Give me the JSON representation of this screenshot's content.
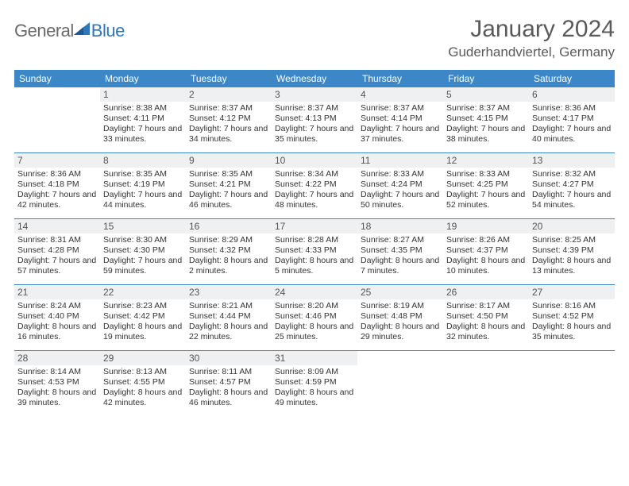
{
  "logo": {
    "general": "General",
    "blue": "Blue"
  },
  "title": "January 2024",
  "location": "Guderhandviertel, Germany",
  "colors": {
    "header_bg": "#3b87c8",
    "daynum_bg": "#eef0f2",
    "border": "#3b87c8",
    "text": "#333333",
    "muted": "#5a5a5a",
    "logo_blue": "#2d78b8",
    "logo_gray": "#6a6a6a"
  },
  "dayNames": [
    "Sunday",
    "Monday",
    "Tuesday",
    "Wednesday",
    "Thursday",
    "Friday",
    "Saturday"
  ],
  "weeks": [
    [
      {
        "n": "",
        "sr": "",
        "ss": "",
        "dl": ""
      },
      {
        "n": "1",
        "sr": "Sunrise: 8:38 AM",
        "ss": "Sunset: 4:11 PM",
        "dl": "Daylight: 7 hours and 33 minutes."
      },
      {
        "n": "2",
        "sr": "Sunrise: 8:37 AM",
        "ss": "Sunset: 4:12 PM",
        "dl": "Daylight: 7 hours and 34 minutes."
      },
      {
        "n": "3",
        "sr": "Sunrise: 8:37 AM",
        "ss": "Sunset: 4:13 PM",
        "dl": "Daylight: 7 hours and 35 minutes."
      },
      {
        "n": "4",
        "sr": "Sunrise: 8:37 AM",
        "ss": "Sunset: 4:14 PM",
        "dl": "Daylight: 7 hours and 37 minutes."
      },
      {
        "n": "5",
        "sr": "Sunrise: 8:37 AM",
        "ss": "Sunset: 4:15 PM",
        "dl": "Daylight: 7 hours and 38 minutes."
      },
      {
        "n": "6",
        "sr": "Sunrise: 8:36 AM",
        "ss": "Sunset: 4:17 PM",
        "dl": "Daylight: 7 hours and 40 minutes."
      }
    ],
    [
      {
        "n": "7",
        "sr": "Sunrise: 8:36 AM",
        "ss": "Sunset: 4:18 PM",
        "dl": "Daylight: 7 hours and 42 minutes."
      },
      {
        "n": "8",
        "sr": "Sunrise: 8:35 AM",
        "ss": "Sunset: 4:19 PM",
        "dl": "Daylight: 7 hours and 44 minutes."
      },
      {
        "n": "9",
        "sr": "Sunrise: 8:35 AM",
        "ss": "Sunset: 4:21 PM",
        "dl": "Daylight: 7 hours and 46 minutes."
      },
      {
        "n": "10",
        "sr": "Sunrise: 8:34 AM",
        "ss": "Sunset: 4:22 PM",
        "dl": "Daylight: 7 hours and 48 minutes."
      },
      {
        "n": "11",
        "sr": "Sunrise: 8:33 AM",
        "ss": "Sunset: 4:24 PM",
        "dl": "Daylight: 7 hours and 50 minutes."
      },
      {
        "n": "12",
        "sr": "Sunrise: 8:33 AM",
        "ss": "Sunset: 4:25 PM",
        "dl": "Daylight: 7 hours and 52 minutes."
      },
      {
        "n": "13",
        "sr": "Sunrise: 8:32 AM",
        "ss": "Sunset: 4:27 PM",
        "dl": "Daylight: 7 hours and 54 minutes."
      }
    ],
    [
      {
        "n": "14",
        "sr": "Sunrise: 8:31 AM",
        "ss": "Sunset: 4:28 PM",
        "dl": "Daylight: 7 hours and 57 minutes."
      },
      {
        "n": "15",
        "sr": "Sunrise: 8:30 AM",
        "ss": "Sunset: 4:30 PM",
        "dl": "Daylight: 7 hours and 59 minutes."
      },
      {
        "n": "16",
        "sr": "Sunrise: 8:29 AM",
        "ss": "Sunset: 4:32 PM",
        "dl": "Daylight: 8 hours and 2 minutes."
      },
      {
        "n": "17",
        "sr": "Sunrise: 8:28 AM",
        "ss": "Sunset: 4:33 PM",
        "dl": "Daylight: 8 hours and 5 minutes."
      },
      {
        "n": "18",
        "sr": "Sunrise: 8:27 AM",
        "ss": "Sunset: 4:35 PM",
        "dl": "Daylight: 8 hours and 7 minutes."
      },
      {
        "n": "19",
        "sr": "Sunrise: 8:26 AM",
        "ss": "Sunset: 4:37 PM",
        "dl": "Daylight: 8 hours and 10 minutes."
      },
      {
        "n": "20",
        "sr": "Sunrise: 8:25 AM",
        "ss": "Sunset: 4:39 PM",
        "dl": "Daylight: 8 hours and 13 minutes."
      }
    ],
    [
      {
        "n": "21",
        "sr": "Sunrise: 8:24 AM",
        "ss": "Sunset: 4:40 PM",
        "dl": "Daylight: 8 hours and 16 minutes."
      },
      {
        "n": "22",
        "sr": "Sunrise: 8:23 AM",
        "ss": "Sunset: 4:42 PM",
        "dl": "Daylight: 8 hours and 19 minutes."
      },
      {
        "n": "23",
        "sr": "Sunrise: 8:21 AM",
        "ss": "Sunset: 4:44 PM",
        "dl": "Daylight: 8 hours and 22 minutes."
      },
      {
        "n": "24",
        "sr": "Sunrise: 8:20 AM",
        "ss": "Sunset: 4:46 PM",
        "dl": "Daylight: 8 hours and 25 minutes."
      },
      {
        "n": "25",
        "sr": "Sunrise: 8:19 AM",
        "ss": "Sunset: 4:48 PM",
        "dl": "Daylight: 8 hours and 29 minutes."
      },
      {
        "n": "26",
        "sr": "Sunrise: 8:17 AM",
        "ss": "Sunset: 4:50 PM",
        "dl": "Daylight: 8 hours and 32 minutes."
      },
      {
        "n": "27",
        "sr": "Sunrise: 8:16 AM",
        "ss": "Sunset: 4:52 PM",
        "dl": "Daylight: 8 hours and 35 minutes."
      }
    ],
    [
      {
        "n": "28",
        "sr": "Sunrise: 8:14 AM",
        "ss": "Sunset: 4:53 PM",
        "dl": "Daylight: 8 hours and 39 minutes."
      },
      {
        "n": "29",
        "sr": "Sunrise: 8:13 AM",
        "ss": "Sunset: 4:55 PM",
        "dl": "Daylight: 8 hours and 42 minutes."
      },
      {
        "n": "30",
        "sr": "Sunrise: 8:11 AM",
        "ss": "Sunset: 4:57 PM",
        "dl": "Daylight: 8 hours and 46 minutes."
      },
      {
        "n": "31",
        "sr": "Sunrise: 8:09 AM",
        "ss": "Sunset: 4:59 PM",
        "dl": "Daylight: 8 hours and 49 minutes."
      },
      {
        "n": "",
        "sr": "",
        "ss": "",
        "dl": ""
      },
      {
        "n": "",
        "sr": "",
        "ss": "",
        "dl": ""
      },
      {
        "n": "",
        "sr": "",
        "ss": "",
        "dl": ""
      }
    ]
  ]
}
